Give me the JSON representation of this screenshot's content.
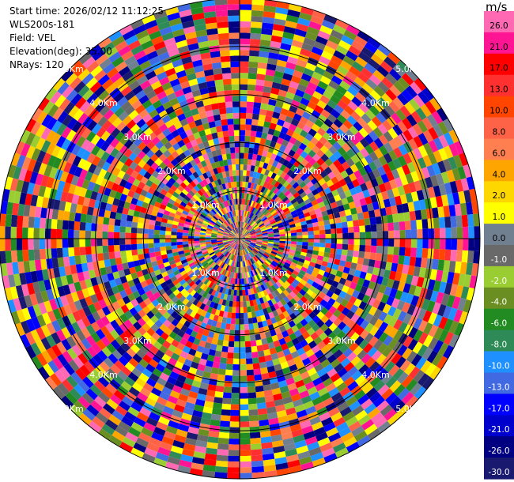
{
  "info": {
    "start_time": "Start time: 2026/02/12 11:12:25",
    "site": "WLS200s-181",
    "field": "Field: VEL",
    "elevation": "Elevation(deg): 35.00",
    "nrays": "NRays: 120"
  },
  "chart_data": {
    "type": "heatmap",
    "projection": "polar-ppi",
    "field": "VEL",
    "unit": "m/s",
    "nrays": 120,
    "elevation_deg": 35.0,
    "range_rings_km": [
      1.0,
      2.0,
      3.0,
      4.0,
      5.0
    ],
    "ring_labels": [
      "1.0Km",
      "2.0Km",
      "3.0Km",
      "4.0Km",
      "5.0Km"
    ],
    "colorbar": {
      "ticks": [
        "26.0",
        "21.0",
        "17.0",
        "13.0",
        "10.0",
        "8.0",
        "6.0",
        "4.0",
        "2.0",
        "1.0",
        "0.0",
        "-1.0",
        "-2.0",
        "-4.0",
        "-6.0",
        "-8.0",
        "-10.0",
        "-13.0",
        "-17.0",
        "-21.0",
        "-26.0",
        "-30.0"
      ],
      "colors": [
        "#ff69b4",
        "#ff1493",
        "#ff0000",
        "#ff3030",
        "#ff4500",
        "#ff6347",
        "#ff7f50",
        "#ffa500",
        "#ffd700",
        "#ffff00",
        "#708090",
        "#696969",
        "#9acd32",
        "#6b8e23",
        "#228b22",
        "#2e8b57",
        "#1e90ff",
        "#4169e1",
        "#0000ff",
        "#0000cd",
        "#000080",
        "#191970"
      ]
    }
  }
}
